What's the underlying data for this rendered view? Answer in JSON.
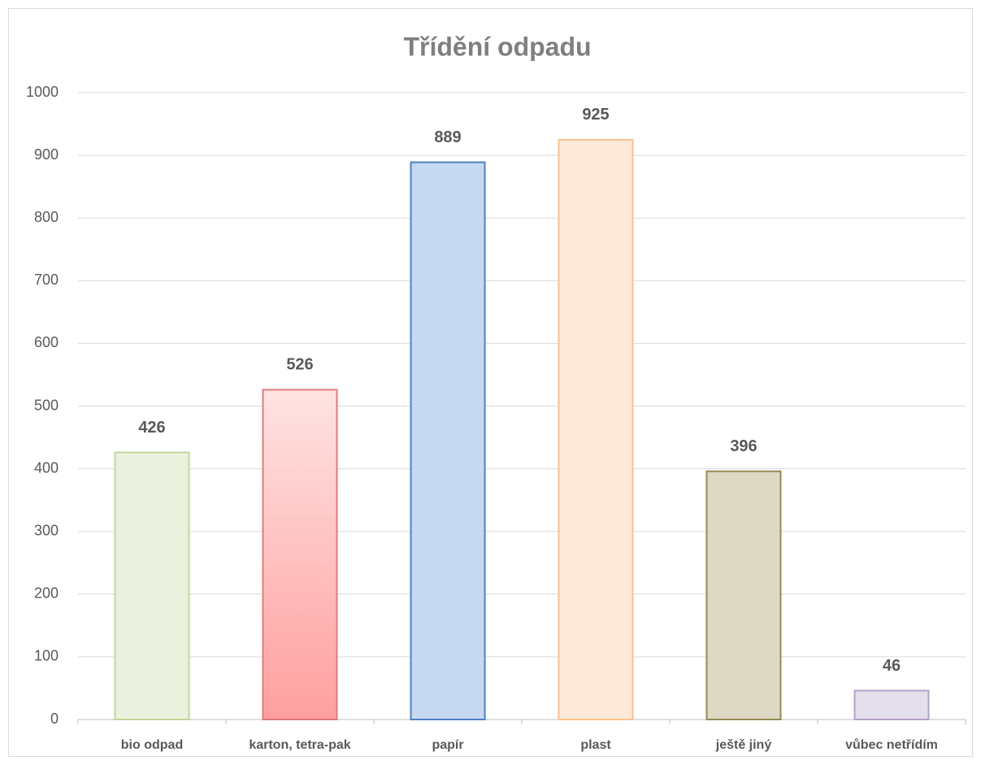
{
  "chart_data": {
    "type": "bar",
    "title": "Třídění odpadu",
    "categories": [
      "bio odpad",
      "karton, tetra-pak",
      "papír",
      "plast",
      "ještě jiný",
      "vůbec netřídím"
    ],
    "values": [
      426,
      526,
      889,
      925,
      396,
      46
    ],
    "colors": [
      "#ebf1de",
      [
        "#ffe3e3",
        "#ff9f9f"
      ],
      "#c6d9f1",
      "#fde9d9",
      "#ddd9c4",
      "#e4dfec"
    ],
    "edge_colors": [
      "#c3d69b",
      "#e07a7a",
      "#4f81bd",
      "#fac090",
      "#948a54",
      "#b3a2c7"
    ],
    "ylim": [
      0,
      1000
    ],
    "yticks": [
      0,
      100,
      200,
      300,
      400,
      500,
      600,
      700,
      800,
      900,
      1000
    ],
    "grid": true
  }
}
